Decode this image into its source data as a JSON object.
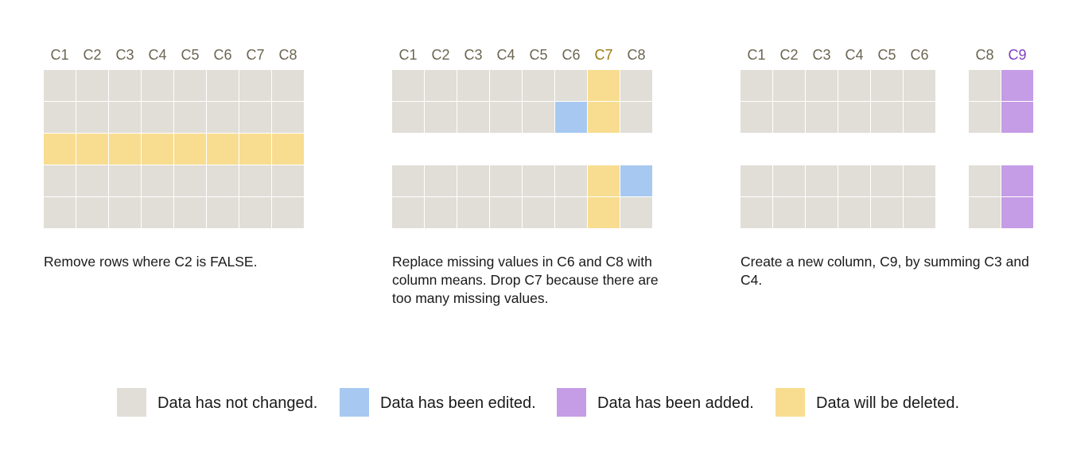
{
  "colors": {
    "unchanged": "#e1ded7",
    "edited": "#a7c9f1",
    "added": "#c59ce6",
    "deleted": "#f8dd90",
    "header_default": "#6b6551",
    "header_deleted": "#9a7a10",
    "header_added": "#7f3fbf"
  },
  "panels": [
    {
      "headers": [
        "C1",
        "C2",
        "C3",
        "C4",
        "C5",
        "C6",
        "C7",
        "C8"
      ],
      "header_states": [
        "default",
        "default",
        "default",
        "default",
        "default",
        "default",
        "default",
        "default"
      ],
      "rows": [
        [
          "unchanged",
          "unchanged",
          "unchanged",
          "unchanged",
          "unchanged",
          "unchanged",
          "unchanged",
          "unchanged"
        ],
        [
          "unchanged",
          "unchanged",
          "unchanged",
          "unchanged",
          "unchanged",
          "unchanged",
          "unchanged",
          "unchanged"
        ],
        [
          "deleted",
          "deleted",
          "deleted",
          "deleted",
          "deleted",
          "deleted",
          "deleted",
          "deleted"
        ],
        [
          "unchanged",
          "unchanged",
          "unchanged",
          "unchanged",
          "unchanged",
          "unchanged",
          "unchanged",
          "unchanged"
        ],
        [
          "unchanged",
          "unchanged",
          "unchanged",
          "unchanged",
          "unchanged",
          "unchanged",
          "unchanged",
          "unchanged"
        ]
      ],
      "caption": "Remove rows where C2 is FALSE."
    },
    {
      "headers": [
        "C1",
        "C2",
        "C3",
        "C4",
        "C5",
        "C6",
        "C7",
        "C8"
      ],
      "header_states": [
        "default",
        "default",
        "default",
        "default",
        "default",
        "default",
        "deleted",
        "default"
      ],
      "rows": [
        [
          "unchanged",
          "unchanged",
          "unchanged",
          "unchanged",
          "unchanged",
          "unchanged",
          "deleted",
          "unchanged"
        ],
        [
          "unchanged",
          "unchanged",
          "unchanged",
          "unchanged",
          "unchanged",
          "edited",
          "deleted",
          "unchanged"
        ],
        [
          null,
          null,
          null,
          null,
          null,
          null,
          null,
          null
        ],
        [
          "unchanged",
          "unchanged",
          "unchanged",
          "unchanged",
          "unchanged",
          "unchanged",
          "deleted",
          "edited"
        ],
        [
          "unchanged",
          "unchanged",
          "unchanged",
          "unchanged",
          "unchanged",
          "unchanged",
          "deleted",
          "unchanged"
        ]
      ],
      "caption": "Replace missing values in C6 and C8 with column means. Drop C7 because there are too many missing values."
    },
    {
      "headers": [
        "C1",
        "C2",
        "C3",
        "C4",
        "C5",
        "C6",
        "",
        "C8",
        "C9"
      ],
      "header_states": [
        "default",
        "default",
        "default",
        "default",
        "default",
        "default",
        "default",
        "default",
        "added"
      ],
      "rows": [
        [
          "unchanged",
          "unchanged",
          "unchanged",
          "unchanged",
          "unchanged",
          "unchanged",
          null,
          "unchanged",
          "added"
        ],
        [
          "unchanged",
          "unchanged",
          "unchanged",
          "unchanged",
          "unchanged",
          "unchanged",
          null,
          "unchanged",
          "added"
        ],
        [
          null,
          null,
          null,
          null,
          null,
          null,
          null,
          null,
          null
        ],
        [
          "unchanged",
          "unchanged",
          "unchanged",
          "unchanged",
          "unchanged",
          "unchanged",
          null,
          "unchanged",
          "added"
        ],
        [
          "unchanged",
          "unchanged",
          "unchanged",
          "unchanged",
          "unchanged",
          "unchanged",
          null,
          "unchanged",
          "added"
        ]
      ],
      "caption": "Create a new column, C9, by summing C3 and C4."
    }
  ],
  "legend": [
    {
      "state": "unchanged",
      "label": "Data has not changed."
    },
    {
      "state": "edited",
      "label": "Data has been edited."
    },
    {
      "state": "added",
      "label": "Data has been added."
    },
    {
      "state": "deleted",
      "label": "Data will be deleted."
    }
  ]
}
